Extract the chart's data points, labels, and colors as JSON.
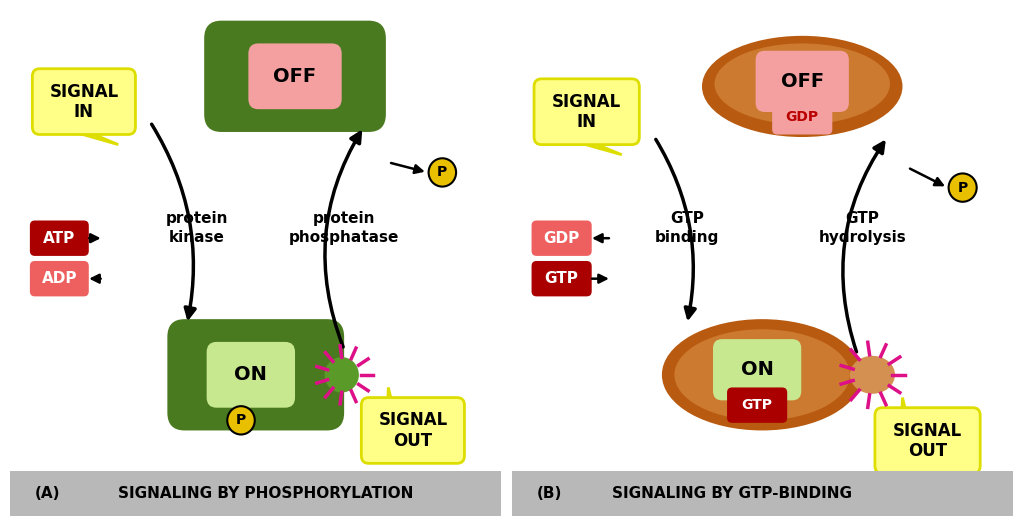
{
  "bg_color": "#ffffff",
  "footer_bg": "#b8b8b8",
  "panel_a_label": "(A)",
  "panel_a_title": "SIGNALING BY PHOSPHORYLATION",
  "panel_b_label": "(B)",
  "panel_b_title": "SIGNALING BY GTP-BINDING",
  "yellow": "#ffff88",
  "yellow_dark": "#dddd00",
  "green_dark": "#4a7a20",
  "green_mid": "#5a9a28",
  "green_light": "#c8e890",
  "brown_outer": "#b85a10",
  "brown_inner": "#cc7a30",
  "brown_knob": "#d49050",
  "red_dark": "#bb0000",
  "salmon": "#f4a0a0",
  "gold": "#e8c000",
  "pink_ray": "#dd1088",
  "atp_color": "#aa0000",
  "adp_color": "#ee6060",
  "gdp_color": "#ee6060",
  "gtp_color": "#aa0000",
  "black": "#000000"
}
